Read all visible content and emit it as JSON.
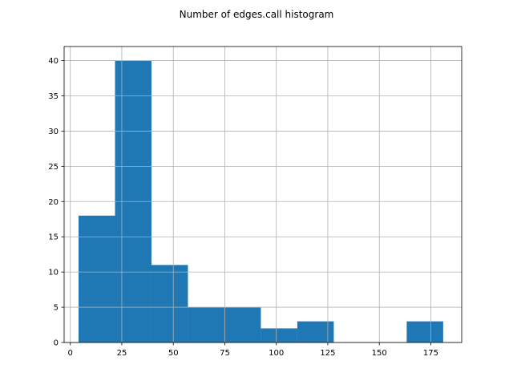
{
  "chart_data": {
    "type": "bar",
    "title": "Number of edges.call histogram",
    "xlabel": "",
    "ylabel": "",
    "xlim": [
      -3,
      190
    ],
    "ylim": [
      0,
      42
    ],
    "grid": true,
    "bar_color": "#1f77b4",
    "grid_color": "#b0b0b0",
    "bins": [
      {
        "x0": 4,
        "x1": 21.7,
        "count": 18
      },
      {
        "x0": 21.7,
        "x1": 39.4,
        "count": 40
      },
      {
        "x0": 39.4,
        "x1": 57.1,
        "count": 11
      },
      {
        "x0": 57.1,
        "x1": 74.8,
        "count": 5
      },
      {
        "x0": 74.8,
        "x1": 92.5,
        "count": 5
      },
      {
        "x0": 92.5,
        "x1": 110.2,
        "count": 2
      },
      {
        "x0": 110.2,
        "x1": 127.9,
        "count": 3
      },
      {
        "x0": 127.9,
        "x1": 145.6,
        "count": 0
      },
      {
        "x0": 145.6,
        "x1": 163.3,
        "count": 0
      },
      {
        "x0": 163.3,
        "x1": 181,
        "count": 3
      }
    ],
    "x_ticks": [
      0,
      25,
      50,
      75,
      100,
      125,
      150,
      175
    ],
    "y_ticks": [
      0,
      5,
      10,
      15,
      20,
      25,
      30,
      35,
      40
    ]
  }
}
